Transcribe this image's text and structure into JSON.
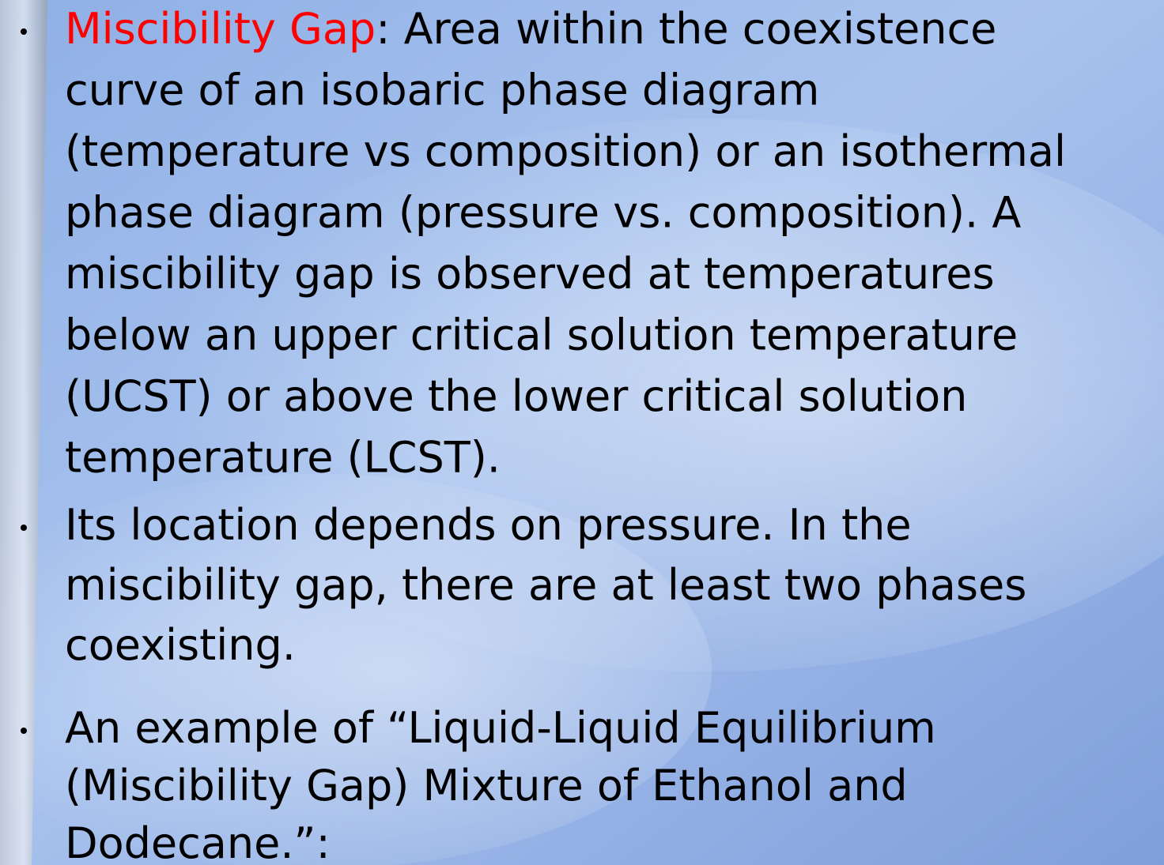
{
  "bullets": [
    {
      "term": "Miscibility Gap",
      "lines": [
        ": Area within the coexistence",
        "curve of an isobaric phase diagram",
        "(temperature vs composition) or an isothermal",
        "phase diagram (pressure vs. composition). A",
        "miscibility gap is observed at temperatures",
        "below an upper critical solution temperature",
        "(UCST) or above the lower critical solution",
        "temperature (LCST)."
      ]
    },
    {
      "lines": [
        "Its location depends on pressure. In the",
        "miscibility gap, there are at least two phases",
        "coexisting."
      ]
    },
    {
      "lines": [
        "An example of “Liquid-Liquid Equilibrium",
        "(Miscibility Gap) Mixture of Ethanol and",
        "Dodecane.”:"
      ]
    }
  ]
}
